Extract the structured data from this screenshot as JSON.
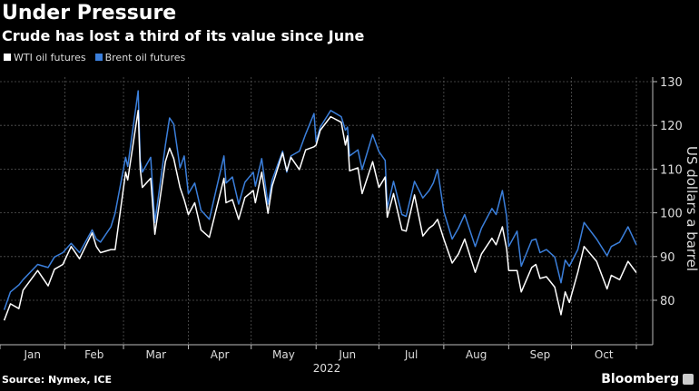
{
  "chart_data": {
    "type": "line",
    "title": "Under Pressure",
    "subtitle": "Crude has lost a third of its value since June",
    "ylabel": "US dollars a barrel",
    "xlabel": "2022",
    "ylim": [
      70,
      131
    ],
    "yticks": [
      80,
      90,
      100,
      110,
      120,
      130
    ],
    "xticks": [
      "Jan",
      "Feb",
      "Mar",
      "Apr",
      "May",
      "Jun",
      "Jul",
      "Aug",
      "Sep",
      "Oct"
    ],
    "year": "2022",
    "grid": true,
    "legend_position": "top-left",
    "x": [
      "2022-01-03",
      "2022-01-06",
      "2022-01-10",
      "2022-01-12",
      "2022-01-19",
      "2022-01-24",
      "2022-01-27",
      "2022-01-31",
      "2022-02-04",
      "2022-02-08",
      "2022-02-14",
      "2022-02-16",
      "2022-02-18",
      "2022-02-23",
      "2022-02-25",
      "2022-03-02",
      "2022-03-03",
      "2022-03-08",
      "2022-03-09",
      "2022-03-10",
      "2022-03-14",
      "2022-03-16",
      "2022-03-21",
      "2022-03-23",
      "2022-03-25",
      "2022-03-28",
      "2022-03-30",
      "2022-04-01",
      "2022-04-04",
      "2022-04-07",
      "2022-04-11",
      "2022-04-18",
      "2022-04-19",
      "2022-04-22",
      "2022-04-25",
      "2022-04-28",
      "2022-05-02",
      "2022-05-03",
      "2022-05-06",
      "2022-05-09",
      "2022-05-11",
      "2022-05-16",
      "2022-05-18",
      "2022-05-20",
      "2022-05-24",
      "2022-05-27",
      "2022-05-31",
      "2022-06-01",
      "2022-06-03",
      "2022-06-08",
      "2022-06-13",
      "2022-06-15",
      "2022-06-16",
      "2022-06-17",
      "2022-06-21",
      "2022-06-23",
      "2022-06-28",
      "2022-07-01",
      "2022-07-04",
      "2022-07-05",
      "2022-07-08",
      "2022-07-12",
      "2022-07-14",
      "2022-07-18",
      "2022-07-22",
      "2022-07-25",
      "2022-07-27",
      "2022-07-29",
      "2022-08-01",
      "2022-08-05",
      "2022-08-08",
      "2022-08-11",
      "2022-08-16",
      "2022-08-19",
      "2022-08-24",
      "2022-08-26",
      "2022-08-29",
      "2022-08-31",
      "2022-09-01",
      "2022-09-05",
      "2022-09-07",
      "2022-09-12",
      "2022-09-14",
      "2022-09-16",
      "2022-09-19",
      "2022-09-23",
      "2022-09-26",
      "2022-09-28",
      "2022-09-30",
      "2022-10-04",
      "2022-10-07",
      "2022-10-13",
      "2022-10-18",
      "2022-10-20",
      "2022-10-24",
      "2022-10-28",
      "2022-11-01"
    ],
    "series": [
      {
        "name": "WTI oil futures",
        "color": "#ffffff",
        "values": [
          75.4,
          79.2,
          78.1,
          82.3,
          86.8,
          83.3,
          87.1,
          88.2,
          92.3,
          89.5,
          95.4,
          92.3,
          90.9,
          91.6,
          91.6,
          109.3,
          107.5,
          123.4,
          110,
          105.8,
          107.9,
          95.1,
          111.7,
          114.8,
          112.4,
          105.8,
          103,
          99.6,
          102.3,
          96.1,
          94.4,
          107.9,
          102.3,
          103,
          98.5,
          103.5,
          105.1,
          102.3,
          109.3,
          99.9,
          106.1,
          113.7,
          109.6,
          112.7,
          109.9,
          114.4,
          115.1,
          115.5,
          118.9,
          122,
          120.7,
          115.5,
          117.6,
          109.6,
          110.3,
          104.4,
          111.7,
          105.8,
          108.2,
          99,
          104.4,
          96.1,
          95.8,
          104.1,
          94.7,
          96.5,
          97.2,
          98.5,
          94,
          88.5,
          90.6,
          94,
          86.4,
          90.6,
          94.2,
          92.7,
          96.8,
          91.8,
          86.8,
          86.8,
          81.9,
          87.5,
          88.2,
          85,
          85.4,
          83,
          76.7,
          81.9,
          79.5,
          86.4,
          92.3,
          88.9,
          82.6,
          85.7,
          84.7,
          88.9,
          86.3
        ]
      },
      {
        "name": "Brent oil futures",
        "color": "#3b7fdb",
        "values": [
          77.8,
          81.9,
          83.5,
          84.7,
          88.2,
          87.5,
          89.9,
          90.9,
          93,
          90.9,
          96.1,
          94,
          93.3,
          96.8,
          99.9,
          112.7,
          110.6,
          127.9,
          112,
          109.3,
          112.7,
          97.8,
          115.5,
          121.7,
          120.3,
          110.3,
          113,
          104.4,
          106.8,
          100.6,
          98.5,
          113,
          106.8,
          108.2,
          102,
          107,
          109.3,
          106.1,
          112.4,
          102,
          107.5,
          114.1,
          109.3,
          113,
          114.1,
          118,
          122.7,
          116.2,
          119.6,
          123.4,
          122,
          118.9,
          119.6,
          113,
          114.4,
          109.9,
          117.9,
          114,
          112,
          101,
          107.2,
          99.6,
          99.2,
          107.2,
          103.4,
          105.1,
          106.8,
          109.9,
          100.3,
          94,
          96.5,
          99.6,
          92.3,
          96.5,
          101,
          99.6,
          105.1,
          99.2,
          92.3,
          95.8,
          87.8,
          93.7,
          94,
          90.9,
          91.6,
          89.9,
          84,
          89.2,
          87.8,
          91.6,
          97.8,
          94,
          90.2,
          92.3,
          93.3,
          96.8,
          92.7
        ]
      }
    ]
  },
  "footer": {
    "source": "Source: Nymex, ICE",
    "brand": "Bloomberg"
  }
}
